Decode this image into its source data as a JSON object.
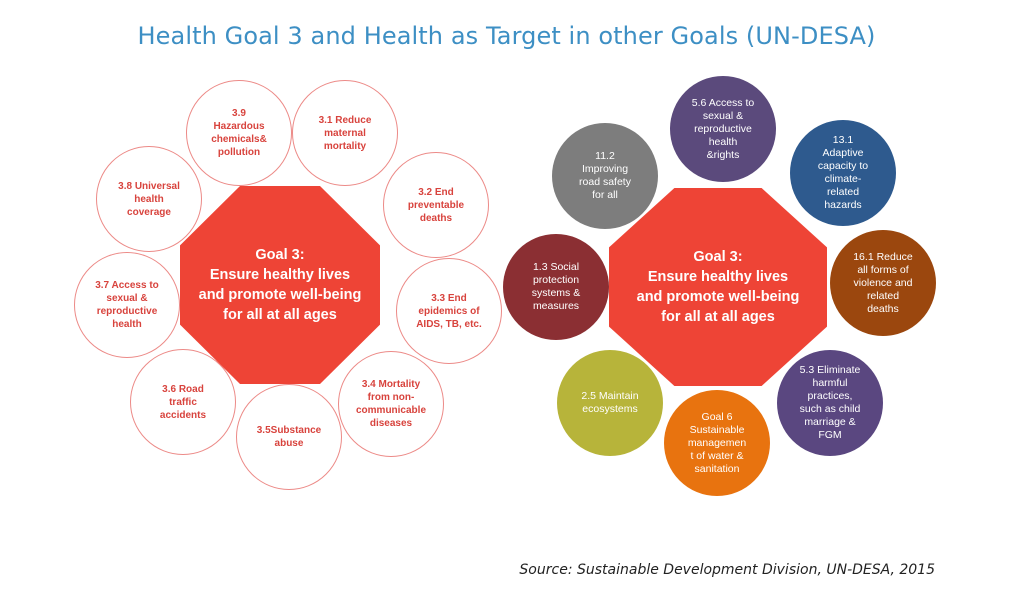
{
  "title": "Health Goal 3 and Health as Target in other Goals (UN-DESA)",
  "left_diagram": {
    "center": "Goal 3:\nEnsure healthy lives\nand promote well-being\nfor all at all ages",
    "targets": [
      {
        "label": "3.9\nHazardous\nchemicals&\npollution"
      },
      {
        "label": "3.1 Reduce\nmaternal\nmortality"
      },
      {
        "label": "3.2 End\npreventable\ndeaths"
      },
      {
        "label": "3.3 End\nepidemics of\nAIDS, TB, etc."
      },
      {
        "label": "3.4 Mortality\nfrom non-\ncommunicable\ndiseases"
      },
      {
        "label": "3.5Substance\nabuse"
      },
      {
        "label": "3.6 Road\ntraffic\naccidents"
      },
      {
        "label": "3.7 Access to\nsexual &\nreproductive\nhealth"
      },
      {
        "label": "3.8 Universal\nhealth\ncoverage"
      }
    ]
  },
  "right_diagram": {
    "center": "Goal 3:\nEnsure healthy lives\nand promote well-being\nfor all at all ages",
    "targets": [
      {
        "label": "11.2\nImproving\nroad safety\nfor all",
        "color": "#7d7d7d"
      },
      {
        "label": "5.6 Access to\nsexual &\nreproductive\nhealth\n&rights",
        "color": "#5b4a7c"
      },
      {
        "label": "13.1\nAdaptive\ncapacity to\nclimate-\nrelated\nhazards",
        "color": "#2e5a8e"
      },
      {
        "label": "16.1 Reduce\nall forms of\nviolence and\nrelated\ndeaths",
        "color": "#9b470e"
      },
      {
        "label": "5.3 Eliminate\nharmful\npractices,\nsuch as child\nmarriage &\nFGM",
        "color": "#5a4780"
      },
      {
        "label": "Goal 6\nSustainable\nmanagemen\nt of water &\nsanitation",
        "color": "#e8730f"
      },
      {
        "label": "2.5 Maintain\necosystems",
        "color": "#b7b43a"
      },
      {
        "label": "1.3 Social\nprotection\nsystems &\nmeasures",
        "color": "#8b2f33"
      }
    ]
  },
  "source": "Source: Sustainable Development Division, UN-DESA, 2015"
}
